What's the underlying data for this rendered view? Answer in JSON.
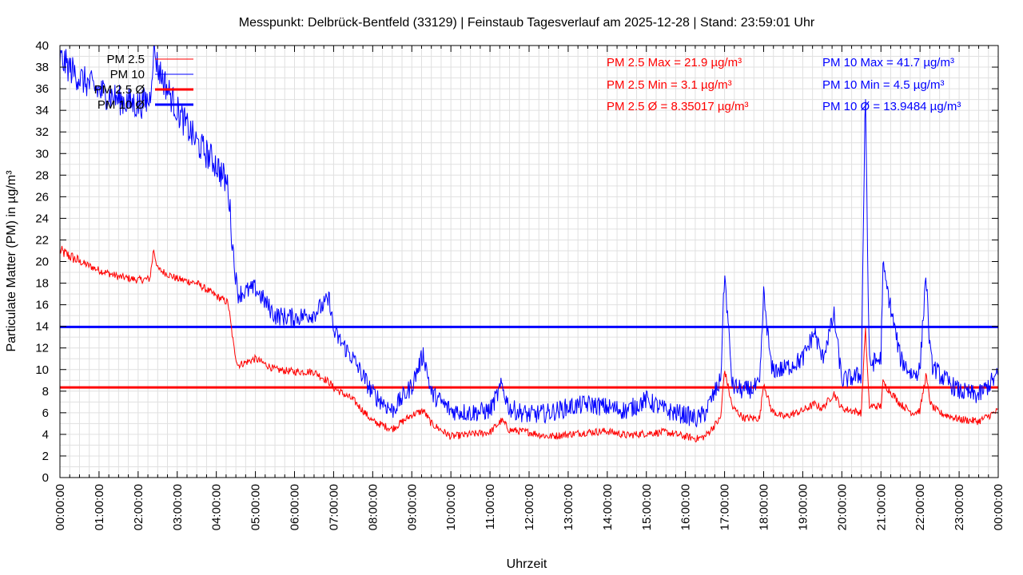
{
  "chart_data": {
    "type": "line",
    "title": "Messpunkt: Delbrück-Bentfeld (33129) | Feinstaub Tagesverlauf am 2025-12-28 | Stand: 23:59:01 Uhr",
    "xlabel": "Uhrzeit",
    "ylabel": "Particulate Matter (PM) in µg/m³",
    "ylim": [
      0,
      40
    ],
    "xlim": [
      0,
      24
    ],
    "grid": true,
    "legend_position": "top-left",
    "x_tick_labels": [
      "00:00:00",
      "01:00:00",
      "02:00:00",
      "03:00:00",
      "04:00:00",
      "05:00:00",
      "06:00:00",
      "07:00:00",
      "08:00:00",
      "09:00:00",
      "10:00:00",
      "11:00:00",
      "12:00:00",
      "13:00:00",
      "14:00:00",
      "15:00:00",
      "16:00:00",
      "17:00:00",
      "18:00:00",
      "19:00:00",
      "20:00:00",
      "21:00:00",
      "22:00:00",
      "23:00:00",
      "00:00:00"
    ],
    "y_tick_labels": [
      "0",
      "2",
      "4",
      "6",
      "8",
      "10",
      "12",
      "14",
      "16",
      "18",
      "20",
      "22",
      "24",
      "26",
      "28",
      "30",
      "32",
      "34",
      "36",
      "38",
      "40"
    ],
    "x": [
      0,
      0.5,
      1,
      1.5,
      2,
      2.3,
      2.4,
      2.5,
      3,
      3.5,
      4,
      4.3,
      4.45,
      4.55,
      5,
      5.5,
      6,
      6.5,
      6.9,
      7,
      7.5,
      8,
      8.5,
      9,
      9.3,
      9.5,
      10,
      10.5,
      11,
      11.3,
      11.5,
      12,
      12.5,
      13,
      13.5,
      14,
      14.5,
      15,
      15.5,
      16,
      16.3,
      16.5,
      16.9,
      17,
      17.2,
      17.5,
      17.9,
      18,
      18.2,
      18.5,
      19,
      19.3,
      19.5,
      19.8,
      20,
      20.5,
      20.6,
      20.7,
      21,
      21.05,
      21.5,
      21.8,
      22,
      22.15,
      22.25,
      22.3,
      22.5,
      23,
      23.5,
      24
    ],
    "series": [
      {
        "name": "PM 2.5",
        "color": "#ff0000",
        "values": [
          21.0,
          20.0,
          19.2,
          18.6,
          18.3,
          18.4,
          21.2,
          19.3,
          18.4,
          18.0,
          16.8,
          16.2,
          12.0,
          10.4,
          11.0,
          10.0,
          9.8,
          9.8,
          8.8,
          8.3,
          7.2,
          5.2,
          4.5,
          5.8,
          6.2,
          5.0,
          3.8,
          4.0,
          4.2,
          5.3,
          4.4,
          4.2,
          3.8,
          4.0,
          4.2,
          4.3,
          3.9,
          4.1,
          4.2,
          3.8,
          3.6,
          3.8,
          5.5,
          10.0,
          6.5,
          5.5,
          5.5,
          8.8,
          6.2,
          5.6,
          6.2,
          6.8,
          6.4,
          7.8,
          6.4,
          6.0,
          14.0,
          6.6,
          6.6,
          8.8,
          6.8,
          6.0,
          6.2,
          9.5,
          7.2,
          6.6,
          6.0,
          5.4,
          5.2,
          6.2
        ]
      },
      {
        "name": "PM 10",
        "color": "#0000ff",
        "values": [
          38.8,
          37.0,
          35.8,
          35.0,
          34.5,
          35.0,
          40.0,
          38.0,
          34.0,
          31.0,
          29.0,
          27.0,
          20.0,
          17.0,
          17.5,
          15.0,
          14.8,
          15.2,
          16.5,
          13.5,
          11.0,
          7.8,
          6.2,
          8.5,
          11.5,
          7.8,
          6.2,
          6.0,
          6.2,
          8.5,
          6.4,
          5.8,
          6.0,
          6.5,
          6.8,
          6.5,
          6.2,
          7.2,
          6.2,
          5.8,
          5.4,
          6.0,
          9.0,
          19.0,
          8.5,
          8.0,
          8.5,
          17.0,
          10.0,
          10.0,
          11.0,
          13.5,
          11.0,
          15.0,
          9.0,
          9.5,
          36.5,
          10.5,
          11.0,
          19.5,
          11.0,
          9.5,
          10.0,
          19.0,
          12.0,
          10.5,
          9.5,
          8.0,
          7.6,
          9.5
        ]
      },
      {
        "name": "PM 2.5 Ø",
        "color": "#ff0000",
        "value": 8.35017
      },
      {
        "name": "PM 10 Ø",
        "color": "#0000ff",
        "value": 13.9484
      }
    ],
    "annotations": {
      "pm25": [
        "PM 2.5 Max = 21.9 µg/m³",
        "PM 2.5 Min = 3.1 µg/m³",
        "PM 2.5 Ø = 8.35017 µg/m³"
      ],
      "pm10": [
        "PM 10 Max = 41.7 µg/m³",
        "PM 10 Min = 4.5 µg/m³",
        "PM 10 Ø = 13.9484 µg/m³"
      ]
    }
  }
}
